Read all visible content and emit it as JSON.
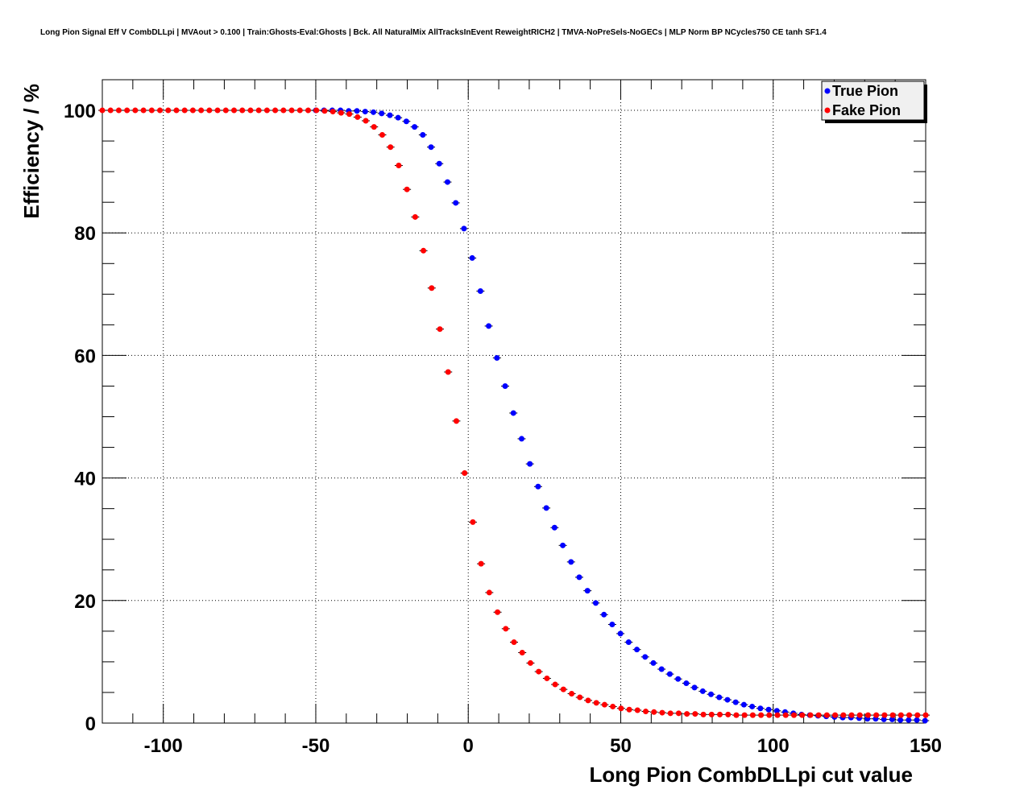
{
  "chart_data": {
    "type": "scatter",
    "title": "Long Pion Signal Eff V CombDLLpi | MVAout > 0.100 | Train:Ghosts-Eval:Ghosts | Bck. All NaturalMix AllTracksInEvent ReweightRICH2 | TMVA-NoPreSels-NoGECs | MLP Norm BP NCycles750 CE tanh SF1.4",
    "xlabel": "Long Pion CombDLLpi cut value",
    "ylabel": "Efficiency / %",
    "xlim": [
      -120,
      150
    ],
    "ylim": [
      0,
      105
    ],
    "grid": true,
    "legend_position": "top-right",
    "x_ticks": [
      {
        "value": -100,
        "label": "-100"
      },
      {
        "value": -50,
        "label": "-50"
      },
      {
        "value": 0,
        "label": "0"
      },
      {
        "value": 50,
        "label": "50"
      },
      {
        "value": 100,
        "label": "100"
      },
      {
        "value": 150,
        "label": "150"
      }
    ],
    "y_ticks": [
      {
        "value": 0,
        "label": "0"
      },
      {
        "value": 20,
        "label": "20"
      },
      {
        "value": 40,
        "label": "40"
      },
      {
        "value": 60,
        "label": "60"
      },
      {
        "value": 80,
        "label": "80"
      },
      {
        "value": 100,
        "label": "100"
      }
    ],
    "series": [
      {
        "name": "True Pion",
        "color": "#0000ff",
        "x": [
          -50.0,
          -47.3,
          -44.6,
          -41.9,
          -39.2,
          -36.5,
          -33.8,
          -31.1,
          -28.4,
          -25.7,
          -23.0,
          -20.3,
          -17.6,
          -14.9,
          -12.2,
          -9.5,
          -6.8,
          -4.1,
          -1.4,
          1.3,
          4.0,
          6.7,
          9.4,
          12.1,
          14.8,
          17.5,
          20.2,
          22.9,
          25.6,
          28.3,
          31.0,
          33.7,
          36.4,
          39.1,
          41.8,
          44.5,
          47.2,
          49.9,
          52.6,
          55.3,
          58.0,
          60.7,
          63.4,
          66.1,
          68.8,
          71.5,
          74.2,
          76.9,
          79.6,
          82.3,
          85.0,
          87.7,
          90.4,
          93.1,
          95.8,
          98.5,
          101.2,
          103.9,
          106.6,
          109.3,
          112.0,
          114.7,
          117.4,
          120.1,
          122.8,
          125.5,
          128.2,
          130.9,
          133.6,
          136.3,
          139.0,
          141.7,
          144.4,
          147.1,
          149.8
        ],
        "values": [
          100.0,
          100.0,
          100.0,
          100.0,
          99.9,
          99.9,
          99.8,
          99.7,
          99.5,
          99.2,
          98.8,
          98.2,
          97.3,
          96.0,
          94.0,
          91.3,
          88.3,
          84.9,
          80.7,
          75.9,
          70.5,
          64.8,
          59.6,
          55.0,
          50.6,
          46.4,
          42.3,
          38.6,
          35.1,
          31.9,
          29.0,
          26.3,
          23.8,
          21.6,
          19.6,
          17.7,
          16.1,
          14.6,
          13.2,
          12.0,
          10.8,
          9.8,
          8.8,
          8.0,
          7.2,
          6.5,
          5.8,
          5.2,
          4.7,
          4.2,
          3.8,
          3.4,
          3.0,
          2.7,
          2.4,
          2.2,
          2.0,
          1.8,
          1.6,
          1.4,
          1.3,
          1.2,
          1.1,
          1.0,
          0.9,
          0.9,
          0.8,
          0.7,
          0.7,
          0.6,
          0.6,
          0.5,
          0.5,
          0.5,
          0.4
        ]
      },
      {
        "name": "Fake Pion",
        "color": "#ff0000",
        "x": [
          -120.0,
          -117.3,
          -114.6,
          -111.9,
          -109.2,
          -106.5,
          -103.8,
          -101.1,
          -98.4,
          -95.7,
          -93.0,
          -90.3,
          -87.6,
          -84.9,
          -82.2,
          -79.5,
          -76.8,
          -74.1,
          -71.4,
          -68.7,
          -66.0,
          -63.3,
          -60.6,
          -57.9,
          -55.2,
          -52.5,
          -49.8,
          -47.1,
          -44.4,
          -41.7,
          -39.0,
          -36.3,
          -33.6,
          -30.9,
          -28.2,
          -25.5,
          -22.8,
          -20.1,
          -17.4,
          -14.7,
          -12.0,
          -9.3,
          -6.6,
          -3.9,
          -1.2,
          1.5,
          4.2,
          6.9,
          9.6,
          12.3,
          15.0,
          17.7,
          20.4,
          23.1,
          25.8,
          28.5,
          31.2,
          33.9,
          36.6,
          39.3,
          42.0,
          44.7,
          47.4,
          50.1,
          52.8,
          55.5,
          58.2,
          60.9,
          63.6,
          66.3,
          69.0,
          71.7,
          74.4,
          77.1,
          79.8,
          82.5,
          85.2,
          87.9,
          90.6,
          93.3,
          96.0,
          98.7,
          101.4,
          104.1,
          106.8,
          109.5,
          112.2,
          114.9,
          117.6,
          120.3,
          123.0,
          125.7,
          128.4,
          131.1,
          133.8,
          136.5,
          139.2,
          141.9,
          144.6,
          147.3,
          150.0
        ],
        "values": [
          100.0,
          100.0,
          100.0,
          100.0,
          100.0,
          100.0,
          100.0,
          100.0,
          100.0,
          100.0,
          100.0,
          100.0,
          100.0,
          100.0,
          100.0,
          100.0,
          100.0,
          100.0,
          100.0,
          100.0,
          100.0,
          100.0,
          100.0,
          100.0,
          100.0,
          100.0,
          100.0,
          99.9,
          99.8,
          99.6,
          99.4,
          98.9,
          98.3,
          97.3,
          96.0,
          94.0,
          91.0,
          87.1,
          82.6,
          77.1,
          71.0,
          64.3,
          57.3,
          49.3,
          40.8,
          32.8,
          26.0,
          21.3,
          18.1,
          15.4,
          13.2,
          11.5,
          9.8,
          8.4,
          7.3,
          6.3,
          5.5,
          4.8,
          4.2,
          3.7,
          3.3,
          3.0,
          2.7,
          2.4,
          2.2,
          2.1,
          1.9,
          1.8,
          1.7,
          1.6,
          1.6,
          1.5,
          1.5,
          1.4,
          1.4,
          1.4,
          1.4,
          1.3,
          1.3,
          1.3,
          1.3,
          1.3,
          1.3,
          1.3,
          1.3,
          1.3,
          1.3,
          1.3,
          1.3,
          1.3,
          1.3,
          1.3,
          1.3,
          1.3,
          1.3,
          1.3,
          1.3,
          1.3,
          1.3,
          1.3,
          1.3
        ]
      }
    ]
  }
}
